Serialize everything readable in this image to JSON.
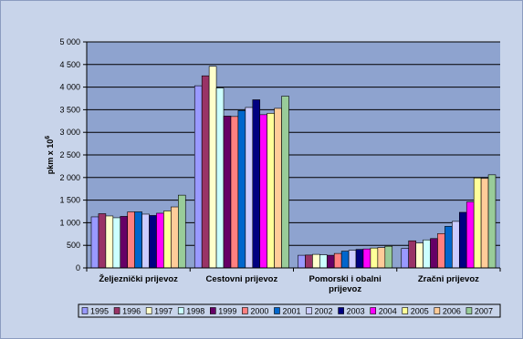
{
  "chart_data": {
    "type": "bar",
    "ylabel": "pkm x 10",
    "ylabel_sup": "6",
    "ylim": [
      0,
      5000
    ],
    "yticks": [
      "0",
      "500",
      "1 000",
      "1 500",
      "2 000",
      "2 500",
      "3 000",
      "3 500",
      "4 000",
      "4 500",
      "5 000"
    ],
    "ytick_values": [
      0,
      500,
      1000,
      1500,
      2000,
      2500,
      3000,
      3500,
      4000,
      4500,
      5000
    ],
    "grid": true,
    "legend_position": "bottom",
    "categories": [
      [
        "Željeznički prijevoz"
      ],
      [
        "Cestovni prijevoz"
      ],
      [
        "Pomorski i obalni",
        "prijevoz"
      ],
      [
        "Zračni prijevoz"
      ]
    ],
    "series": [
      {
        "name": "1995",
        "color": "#9999ff",
        "values": [
          1130,
          4030,
          280,
          430
        ]
      },
      {
        "name": "1996",
        "color": "#993366",
        "values": [
          1200,
          4250,
          285,
          600
        ]
      },
      {
        "name": "1997",
        "color": "#ffffcc",
        "values": [
          1150,
          4460,
          300,
          550
        ]
      },
      {
        "name": "1998",
        "color": "#ccffff",
        "values": [
          1110,
          3980,
          290,
          620
        ]
      },
      {
        "name": "1999",
        "color": "#660066",
        "values": [
          1140,
          3360,
          280,
          650
        ]
      },
      {
        "name": "2000",
        "color": "#ff8080",
        "values": [
          1240,
          3350,
          320,
          760
        ]
      },
      {
        "name": "2001",
        "color": "#0066cc",
        "values": [
          1240,
          3480,
          370,
          920
        ]
      },
      {
        "name": "2002",
        "color": "#ccccff",
        "values": [
          1190,
          3550,
          390,
          1030
        ]
      },
      {
        "name": "2003",
        "color": "#000080",
        "values": [
          1160,
          3720,
          410,
          1230
        ]
      },
      {
        "name": "2004",
        "color": "#ff00ff",
        "values": [
          1210,
          3390,
          420,
          1460
        ]
      },
      {
        "name": "2005",
        "color": "#ffff99",
        "values": [
          1260,
          3420,
          440,
          1990
        ]
      },
      {
        "name": "2006",
        "color": "#ffcc99",
        "values": [
          1350,
          3530,
          450,
          1980
        ]
      },
      {
        "name": "2007",
        "color": "#99cc99",
        "values": [
          1610,
          3800,
          480,
          2060
        ]
      }
    ]
  },
  "colors": {
    "background": "#c8d4ea",
    "plot_area": "#8ea3cf",
    "grid": "#000000"
  }
}
